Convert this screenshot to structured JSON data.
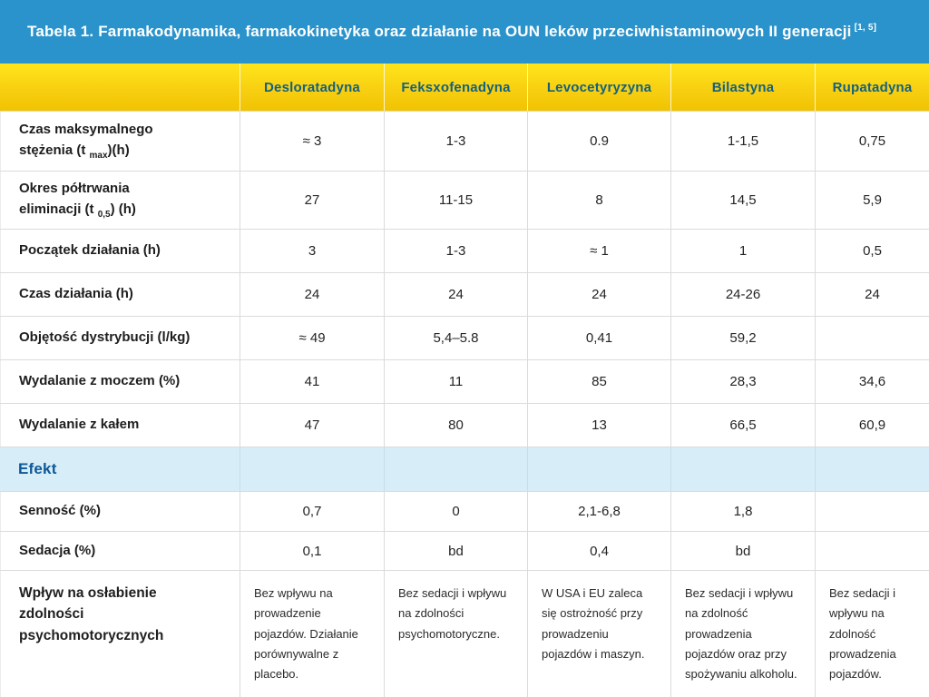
{
  "colors": {
    "titlebar_blue": "#2B93CB",
    "header_yellow_top": "#FFE41C",
    "header_yellow_bottom": "#F0C303",
    "header_text": "#14617F",
    "section_bg": "#D7EEF9",
    "section_text": "#0C5796",
    "border": "#DBDBDB"
  },
  "title": {
    "text": "Tabela 1. Farmakodynamika, farmakokinetyka oraz działanie na OUN leków przeciwhistaminowych II generacji",
    "citation": "[1, 5]"
  },
  "table": {
    "corner_label": "",
    "columns": [
      "Desloratadyna",
      "Feksxofenadyna",
      "Levocetyryzyna",
      "Bilastyna",
      "Rupatadyna"
    ],
    "rows": [
      {
        "name": "czas-maksymalnego-stezenia",
        "label_lines": [
          {
            "text": "Czas maksymalnego"
          },
          {
            "text": "stężenia (t ",
            "sub": "max",
            "end": ")(h)"
          }
        ],
        "values": [
          "≈ 3",
          "1-3",
          "0.9",
          "1-1,5",
          "0,75"
        ]
      },
      {
        "name": "okres-poltrwania-eliminacji",
        "label_lines": [
          {
            "text": "Okres półtrwania"
          },
          {
            "text": "eliminacji (t ",
            "sub": "0,5",
            "end": ") (h)"
          }
        ],
        "values": [
          "27",
          "11-15",
          "8",
          "14,5",
          "5,9"
        ]
      },
      {
        "name": "poczatek-dzialania",
        "label_lines": [
          {
            "text": "Początek działania (h)"
          }
        ],
        "values": [
          "3",
          "1-3",
          "≈ 1",
          "1",
          "0,5"
        ]
      },
      {
        "name": "czas-dzialania",
        "label_lines": [
          {
            "text": "Czas działania (h)"
          }
        ],
        "values": [
          "24",
          "24",
          "24",
          "24-26",
          "24"
        ]
      },
      {
        "name": "objetosc-dystrybucji",
        "label_lines": [
          {
            "text": "Objętość dystrybucji (l/kg)"
          }
        ],
        "values": [
          "≈ 49",
          "5,4–5.8",
          "0,41",
          "59,2",
          ""
        ]
      },
      {
        "name": "wydalanie-z-moczem",
        "label_lines": [
          {
            "text": "Wydalanie z moczem (%)"
          }
        ],
        "values": [
          "41",
          "11",
          "85",
          "28,3",
          "34,6"
        ]
      },
      {
        "name": "wydalanie-z-kalem",
        "label_lines": [
          {
            "text": "Wydalanie z kałem"
          }
        ],
        "values": [
          "47",
          "80",
          "13",
          "66,5",
          "60,9"
        ]
      }
    ],
    "section_row": {
      "label": "Efekt"
    },
    "effect_rows": [
      {
        "name": "sennosc",
        "label_lines": [
          {
            "text": "Senność (%)"
          }
        ],
        "values": [
          "0,7",
          "0",
          "2,1-6,8",
          "1,8",
          ""
        ]
      },
      {
        "name": "sedacja",
        "label_lines": [
          {
            "text": "Sedacja (%)"
          }
        ],
        "values": [
          "0,1",
          "bd",
          "0,4",
          "bd",
          ""
        ]
      },
      {
        "name": "wplyw-na-oslabienie-zdolnosci-psychomotorycznych",
        "label_lines": [
          {
            "text": "Wpływ na osłabienie zdolności"
          },
          {
            "text": "psychomotorycznych"
          }
        ],
        "long_text": true,
        "values": [
          "Bez wpływu na prowadzenie pojazdów. Działanie porównywalne z placebo.",
          "Bez sedacji i wpływu na zdolności psychomotoryczne.",
          "W USA i EU zaleca się ostrożność przy prowadzeniu pojazdów i maszyn.",
          "Bez sedacji i wpływu na zdolność prowadzenia pojazdów oraz przy spożywaniu alkoholu.",
          "Bez sedacji i wpływu na zdolność prowadzenia pojazdów."
        ]
      }
    ]
  }
}
